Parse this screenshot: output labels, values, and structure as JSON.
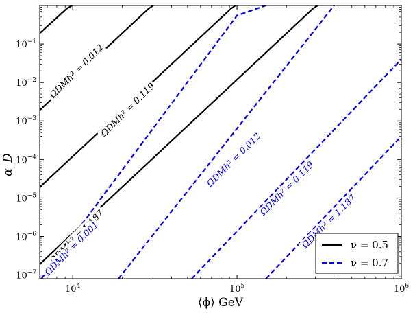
{
  "chart_data": {
    "type": "line",
    "title": "",
    "xlabel": "⟨ϕ⟩ GeV",
    "ylabel": "α_D",
    "xscale": "log",
    "yscale": "log",
    "xlim": [
      6300,
      1000000
    ],
    "ylim": [
      8e-08,
      1
    ],
    "grid": false,
    "legend_position": "bottom-right",
    "x_ticks": [
      {
        "value": 10000,
        "base": "10",
        "exp": "4"
      },
      {
        "value": 100000,
        "base": "10",
        "exp": "5"
      },
      {
        "value": 1000000,
        "base": "10",
        "exp": "6"
      }
    ],
    "y_ticks": [
      {
        "value": 1e-07,
        "base": "10",
        "exp": "−7"
      },
      {
        "value": 1e-06,
        "base": "10",
        "exp": "−6"
      },
      {
        "value": 1e-05,
        "base": "10",
        "exp": "−5"
      },
      {
        "value": 0.0001,
        "base": "10",
        "exp": "−4"
      },
      {
        "value": 0.001,
        "base": "10",
        "exp": "−3"
      },
      {
        "value": 0.01,
        "base": "10",
        "exp": "−2"
      },
      {
        "value": 0.1,
        "base": "10",
        "exp": "−1"
      }
    ],
    "legend": [
      {
        "label": "ν = 0.5",
        "color": "#000000",
        "style": "solid"
      },
      {
        "label": "ν = 0.7",
        "color": "#0000ee",
        "style": "dashed"
      }
    ],
    "series": [
      {
        "group": "nu=0.5",
        "color": "#000000",
        "dashed": false,
        "points": [
          [
            6300,
            0.19
          ],
          [
            9200,
            0.83
          ],
          [
            9900,
            1.0
          ]
        ],
        "label": "",
        "label_x": 0,
        "label_y": 0
      },
      {
        "group": "nu=0.5",
        "color": "#000000",
        "dashed": false,
        "points": [
          [
            6300,
            0.0019
          ],
          [
            29000,
            0.83
          ],
          [
            31000,
            1.0
          ]
        ],
        "label": "ΩDMh² = 0.012",
        "label_x": 10500,
        "label_y": 0.02
      },
      {
        "group": "nu=0.5",
        "color": "#000000",
        "dashed": false,
        "points": [
          [
            6300,
            1.9e-05
          ],
          [
            92000,
            0.83
          ],
          [
            98000,
            1.0
          ]
        ],
        "label": "ΩDMh² = 0.119",
        "label_x": 21500,
        "label_y": 0.002
      },
      {
        "group": "nu=0.5",
        "color": "#000000",
        "dashed": false,
        "points": [
          [
            6300,
            1.9e-07
          ],
          [
            290000,
            0.83
          ],
          [
            310000,
            1.0
          ]
        ],
        "label": "ΩDMh² = 1.187",
        "label_x": 10500,
        "label_y": 1e-06
      },
      {
        "group": "nu=0.7",
        "color": "#0000ee",
        "dashed": true,
        "points": [
          [
            6450,
            8e-08
          ],
          [
            100000,
            0.55
          ],
          [
            150000,
            1.0
          ]
        ],
        "label": "ΩDMh² = 0.001",
        "label_x": 9800,
        "label_y": 5e-07
      },
      {
        "group": "nu=0.7",
        "color": "#0000ee",
        "dashed": true,
        "points": [
          [
            19000,
            8e-08
          ],
          [
            390000,
            1.0
          ]
        ],
        "label": "ΩDMh² = 0.012",
        "label_x": 95000,
        "label_y": 0.0001
      },
      {
        "group": "nu=0.7",
        "color": "#0000ee",
        "dashed": true,
        "points": [
          [
            53000,
            8e-08
          ],
          [
            1000000,
            0.04
          ]
        ],
        "label": "ΩDMh² = 0.119",
        "label_x": 200000,
        "label_y": 1.8e-05
      },
      {
        "group": "nu=0.7",
        "color": "#0000ee",
        "dashed": true,
        "points": [
          [
            150000,
            8e-08
          ],
          [
            1000000,
            0.0004
          ]
        ],
        "label": "ΩDMh² = 1.187",
        "label_x": 360000,
        "label_y": 2.5e-06
      }
    ]
  }
}
